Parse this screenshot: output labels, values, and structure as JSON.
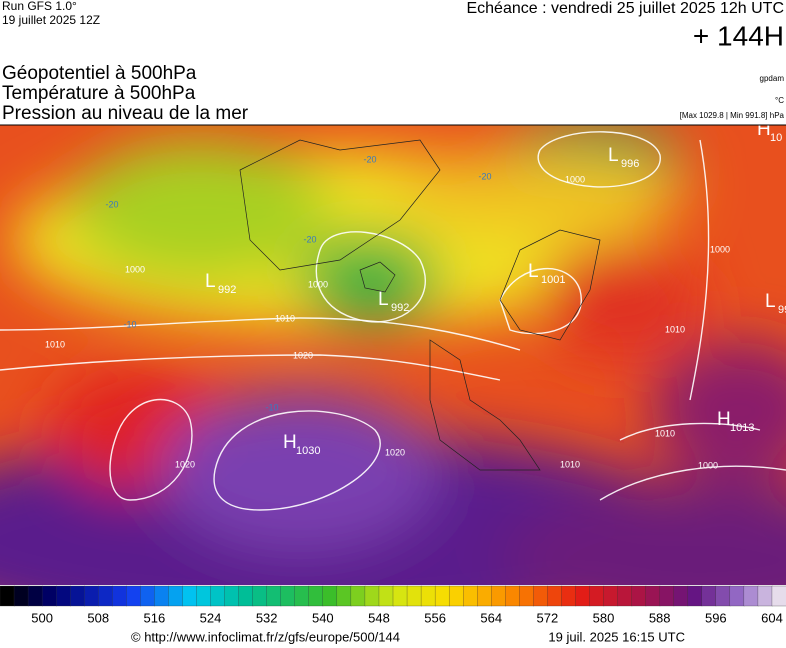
{
  "header": {
    "run": "Run GFS 1.0°",
    "run_date": "19 juillet 2025 12Z",
    "echeance": "Echéance : vendredi 25 juillet 2025 12h UTC",
    "lead": "+ 144H",
    "fields": [
      "Géopotentiel à 500hPa",
      "Température à 500hPa",
      "Pression au niveau de la mer"
    ],
    "units": [
      "gpdam",
      "°C",
      "[Max 1029.8 | Min 991.8] hPa"
    ]
  },
  "map": {
    "centers": [
      {
        "letter": "L",
        "value": "996"
      },
      {
        "letter": "L",
        "value": "992"
      },
      {
        "letter": "L",
        "value": "992"
      },
      {
        "letter": "L",
        "value": "1001"
      },
      {
        "letter": "H",
        "value": "1030"
      },
      {
        "letter": "H",
        "value": "1013"
      },
      {
        "letter": "H",
        "value": "10"
      },
      {
        "letter": "L",
        "value": "99"
      }
    ],
    "isobar_labels": [
      1010,
      1020,
      1000,
      1010,
      1000,
      1000,
      1020,
      1020,
      1010,
      1000,
      1010,
      1000,
      1010
    ],
    "temperature_labels": [
      -20,
      -20,
      -20,
      -10,
      -10,
      -20
    ]
  },
  "colorbar": {
    "range": [
      494,
      606
    ],
    "ticks": [
      500,
      508,
      516,
      524,
      532,
      540,
      548,
      556,
      564,
      572,
      580,
      588,
      596,
      604
    ]
  },
  "footer": {
    "source": "© http://www.infoclimat.fr/z/gfs/europe/500/144",
    "generated": "19 juil. 2025 16:15 UTC"
  }
}
